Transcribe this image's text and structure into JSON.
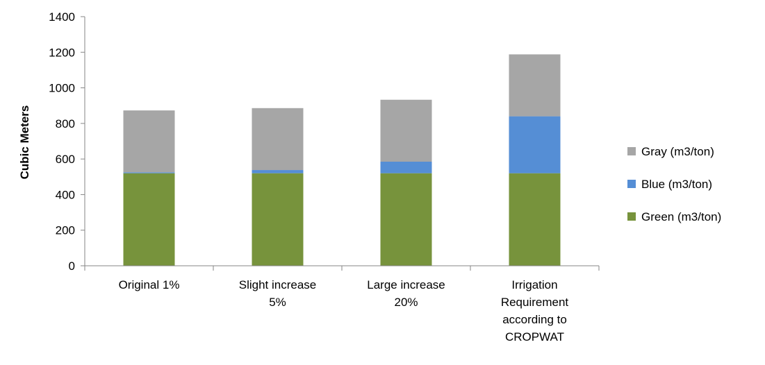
{
  "chart_data": {
    "type": "bar",
    "stacked": true,
    "title": "",
    "xlabel": "",
    "ylabel": "Cubic Meters",
    "ylim": [
      0,
      1400
    ],
    "yticks": [
      0,
      200,
      400,
      600,
      800,
      1000,
      1200,
      1400
    ],
    "grid": false,
    "legend_position": "right",
    "categories": [
      [
        "Original 1%"
      ],
      [
        "Slight increase",
        "5%"
      ],
      [
        "Large increase",
        "20%"
      ],
      [
        "Irrigation",
        "Requirement",
        "according to",
        "CROPWAT"
      ]
    ],
    "series": [
      {
        "name": "Green (m3/ton)",
        "color": "#77933C",
        "values": [
          520,
          520,
          520,
          520
        ]
      },
      {
        "name": "Blue (m3/ton)",
        "color": "#558ED5",
        "values": [
          5,
          18,
          65,
          320
        ]
      },
      {
        "name": "Gray (m3/ton)",
        "color": "#A6A6A6",
        "values": [
          348,
          348,
          348,
          348
        ]
      }
    ]
  }
}
